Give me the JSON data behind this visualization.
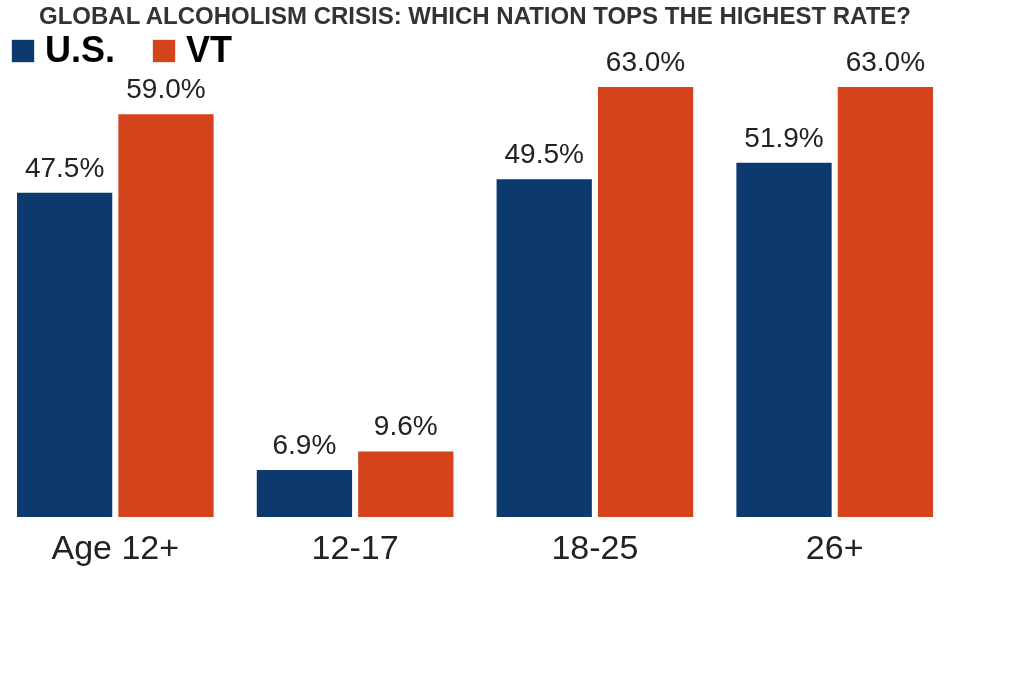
{
  "chart_data": {
    "type": "bar",
    "title": "GLOBAL ALCOHOLISM CRISIS: WHICH NATION TOPS THE HIGHEST RATE?",
    "categories": [
      "Age 12+",
      "12-17",
      "18-25",
      "26+"
    ],
    "series": [
      {
        "name": "U.S.",
        "color": "#0d3a6e",
        "values": [
          47.5,
          6.9,
          49.5,
          51.9
        ],
        "value_labels": [
          "47.5%",
          "6.9%",
          "49.5%",
          "51.9%"
        ]
      },
      {
        "name": "VT",
        "color": "#d3441c",
        "values": [
          59.0,
          9.6,
          63.0,
          63.0
        ],
        "value_labels": [
          "59.0%",
          "9.6%",
          "63.0%",
          "63.0%"
        ]
      }
    ],
    "legend": "top left"
  }
}
